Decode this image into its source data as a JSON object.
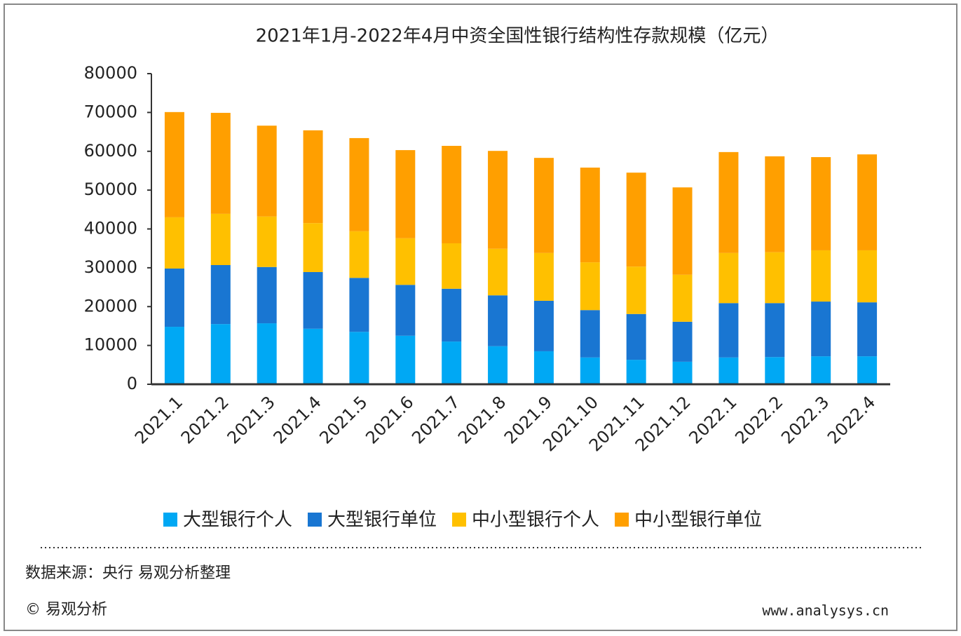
{
  "chart_data": {
    "type": "stacked_bar",
    "title": "2021年1月-2022年4月中资全国性银行结构性存款规模（亿元）",
    "categories": [
      "2021.1",
      "2021.2",
      "2021.3",
      "2021.4",
      "2021.5",
      "2021.6",
      "2021.7",
      "2021.8",
      "2021.9",
      "2021.10",
      "2021.11",
      "2021.12",
      "2022.1",
      "2022.2",
      "2022.3",
      "2022.4"
    ],
    "series": [
      {
        "name": "大型银行个人",
        "color": "#00a8f4",
        "values": [
          14800,
          15500,
          15700,
          14300,
          13500,
          12500,
          11000,
          9800,
          8500,
          6900,
          6300,
          5800,
          6900,
          7000,
          7200,
          7200
        ]
      },
      {
        "name": "大型银行单位",
        "color": "#1976d2",
        "values": [
          15000,
          15200,
          14500,
          14600,
          13900,
          13100,
          13600,
          13100,
          13000,
          12200,
          11800,
          10300,
          14000,
          13900,
          14100,
          13900
        ]
      },
      {
        "name": "中小型银行个人",
        "color": "#ffc000",
        "values": [
          13200,
          13200,
          13000,
          12600,
          12000,
          12000,
          11700,
          12000,
          12300,
          12300,
          12200,
          12100,
          12900,
          13100,
          13200,
          13400
        ]
      },
      {
        "name": "中小型银行单位",
        "color": "#ff9f00",
        "values": [
          27100,
          26000,
          23400,
          23900,
          24000,
          22700,
          25100,
          25200,
          24500,
          24400,
          24200,
          22500,
          26000,
          24700,
          24000,
          24700
        ]
      }
    ],
    "ylim": [
      0,
      80000
    ],
    "yticks": [
      0,
      10000,
      20000,
      30000,
      40000,
      50000,
      60000,
      70000,
      80000
    ],
    "legend": "bottom",
    "source": "数据来源：央行 易观分析整理",
    "copyright": "© 易观分析",
    "website": "www.analysys.cn"
  }
}
